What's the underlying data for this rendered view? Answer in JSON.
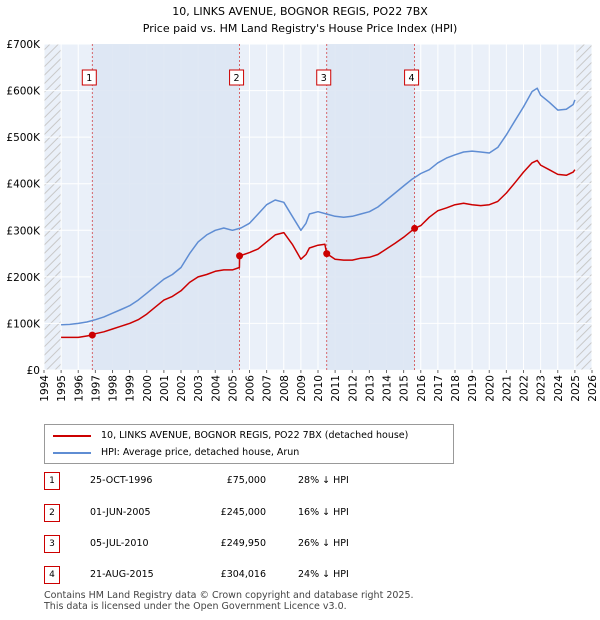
{
  "chart_data": {
    "type": "line",
    "title": "10, LINKS AVENUE, BOGNOR REGIS, PO22 7BX",
    "subtitle": "Price paid vs. HM Land Registry's House Price Index (HPI)",
    "xlim": [
      1994.0,
      2026.0
    ],
    "ylim": [
      0,
      700000
    ],
    "y_ticks": [
      0,
      100000,
      200000,
      300000,
      400000,
      500000,
      600000,
      700000
    ],
    "y_tick_labels": [
      "£0",
      "£100K",
      "£200K",
      "£300K",
      "£400K",
      "£500K",
      "£600K",
      "£700K"
    ],
    "x_ticks": [
      1994,
      1995,
      1996,
      1997,
      1998,
      1999,
      2000,
      2001,
      2002,
      2003,
      2004,
      2005,
      2006,
      2007,
      2008,
      2009,
      2010,
      2011,
      2012,
      2013,
      2014,
      2015,
      2016,
      2017,
      2018,
      2019,
      2020,
      2021,
      2022,
      2023,
      2024,
      2025,
      2026
    ],
    "x_tick_labels": [
      "1994",
      "1995",
      "1996",
      "1997",
      "1998",
      "1999",
      "2000",
      "2001",
      "2002",
      "2003",
      "2004",
      "2005",
      "2006",
      "2007",
      "2008",
      "2009",
      "2010",
      "2011",
      "2012",
      "2013",
      "2014",
      "2015",
      "2016",
      "2017",
      "2018",
      "2019",
      "2020",
      "2021",
      "2022",
      "2023",
      "2024",
      "2025",
      "2026"
    ],
    "hatched_regions": [
      [
        1994.0,
        1995.0
      ],
      [
        2025.1,
        2026.0
      ]
    ],
    "series": [
      {
        "name": "10, LINKS AVENUE, BOGNOR REGIS, PO22 7BX (detached house)",
        "color": "#cc0000",
        "x": [
          1995.0,
          1995.5,
          1996.0,
          1996.5,
          1996.8,
          1997.0,
          1997.5,
          1998.0,
          1998.5,
          1999.0,
          1999.5,
          2000.0,
          2000.5,
          2001.0,
          2001.5,
          2002.0,
          2002.5,
          2003.0,
          2003.5,
          2004.0,
          2004.5,
          2005.0,
          2005.41,
          2005.42,
          2006.0,
          2006.5,
          2007.0,
          2007.5,
          2008.0,
          2008.5,
          2009.0,
          2009.3,
          2009.5,
          2010.0,
          2010.4,
          2010.51,
          2011.0,
          2011.5,
          2012.0,
          2012.5,
          2013.0,
          2013.5,
          2014.0,
          2014.5,
          2015.0,
          2015.5,
          2015.64,
          2016.0,
          2016.5,
          2017.0,
          2017.5,
          2018.0,
          2018.5,
          2019.0,
          2019.5,
          2020.0,
          2020.5,
          2021.0,
          2021.5,
          2022.0,
          2022.5,
          2022.8,
          2023.0,
          2023.5,
          2024.0,
          2024.5,
          2024.9,
          2025.0
        ],
        "values": [
          70000,
          70000,
          70000,
          73000,
          75000,
          78000,
          82000,
          88000,
          94000,
          100000,
          108000,
          120000,
          135000,
          150000,
          158000,
          170000,
          188000,
          200000,
          205000,
          212000,
          215000,
          215000,
          220000,
          245000,
          252000,
          260000,
          275000,
          290000,
          295000,
          270000,
          238000,
          248000,
          262000,
          268000,
          270000,
          249950,
          238000,
          236000,
          236000,
          240000,
          242000,
          248000,
          260000,
          272000,
          285000,
          300000,
          304016,
          310000,
          328000,
          342000,
          348000,
          355000,
          358000,
          355000,
          353000,
          355000,
          362000,
          380000,
          402000,
          425000,
          445000,
          450000,
          440000,
          430000,
          420000,
          418000,
          425000,
          430000
        ]
      },
      {
        "name": "HPI: Average price, detached house, Arun",
        "color": "#5f8dd3",
        "x": [
          1995.0,
          1995.5,
          1996.0,
          1996.5,
          1997.0,
          1997.5,
          1998.0,
          1998.5,
          1999.0,
          1999.5,
          2000.0,
          2000.5,
          2001.0,
          2001.5,
          2002.0,
          2002.5,
          2003.0,
          2003.5,
          2004.0,
          2004.5,
          2005.0,
          2005.5,
          2006.0,
          2006.5,
          2007.0,
          2007.5,
          2008.0,
          2008.5,
          2009.0,
          2009.3,
          2009.5,
          2010.0,
          2010.5,
          2011.0,
          2011.5,
          2012.0,
          2012.5,
          2013.0,
          2013.5,
          2014.0,
          2014.5,
          2015.0,
          2015.5,
          2016.0,
          2016.5,
          2017.0,
          2017.5,
          2018.0,
          2018.5,
          2019.0,
          2019.5,
          2020.0,
          2020.5,
          2021.0,
          2021.5,
          2022.0,
          2022.5,
          2022.8,
          2023.0,
          2023.5,
          2024.0,
          2024.5,
          2024.9,
          2025.0
        ],
        "values": [
          97000,
          98000,
          100000,
          103000,
          108000,
          114000,
          122000,
          130000,
          138000,
          150000,
          165000,
          180000,
          195000,
          205000,
          220000,
          250000,
          275000,
          290000,
          300000,
          305000,
          300000,
          305000,
          315000,
          335000,
          355000,
          365000,
          360000,
          330000,
          300000,
          315000,
          335000,
          340000,
          335000,
          330000,
          328000,
          330000,
          335000,
          340000,
          350000,
          365000,
          380000,
          395000,
          410000,
          422000,
          430000,
          445000,
          455000,
          462000,
          468000,
          470000,
          468000,
          466000,
          478000,
          505000,
          535000,
          565000,
          598000,
          605000,
          590000,
          575000,
          558000,
          560000,
          570000,
          580000
        ]
      }
    ],
    "annotations": [
      {
        "label": "1",
        "x": 1996.82,
        "y": 75000
      },
      {
        "label": "2",
        "x": 2005.42,
        "y": 245000
      },
      {
        "label": "3",
        "x": 2010.51,
        "y": 249950
      },
      {
        "label": "4",
        "x": 2015.64,
        "y": 304016
      }
    ]
  },
  "legend": {
    "property_label": "10, LINKS AVENUE, BOGNOR REGIS, PO22 7BX (detached house)",
    "hpi_label": "HPI: Average price, detached house, Arun"
  },
  "sales": [
    {
      "num": "1",
      "date": "25-OCT-1996",
      "price": "£75,000",
      "hpi": "28% ↓ HPI"
    },
    {
      "num": "2",
      "date": "01-JUN-2005",
      "price": "£245,000",
      "hpi": "16% ↓ HPI"
    },
    {
      "num": "3",
      "date": "05-JUL-2010",
      "price": "£249,950",
      "hpi": "26% ↓ HPI"
    },
    {
      "num": "4",
      "date": "21-AUG-2015",
      "price": "£304,016",
      "hpi": "24% ↓ HPI"
    }
  ],
  "footer": {
    "line1": "Contains HM Land Registry data © Crown copyright and database right 2025.",
    "line2": "This data is licensed under the Open Government Licence v3.0."
  },
  "colors": {
    "property_line": "#cc0000",
    "hpi_line": "#5f8dd3",
    "plot_bg": "#eaf0f9",
    "grid": "#ffffff"
  }
}
